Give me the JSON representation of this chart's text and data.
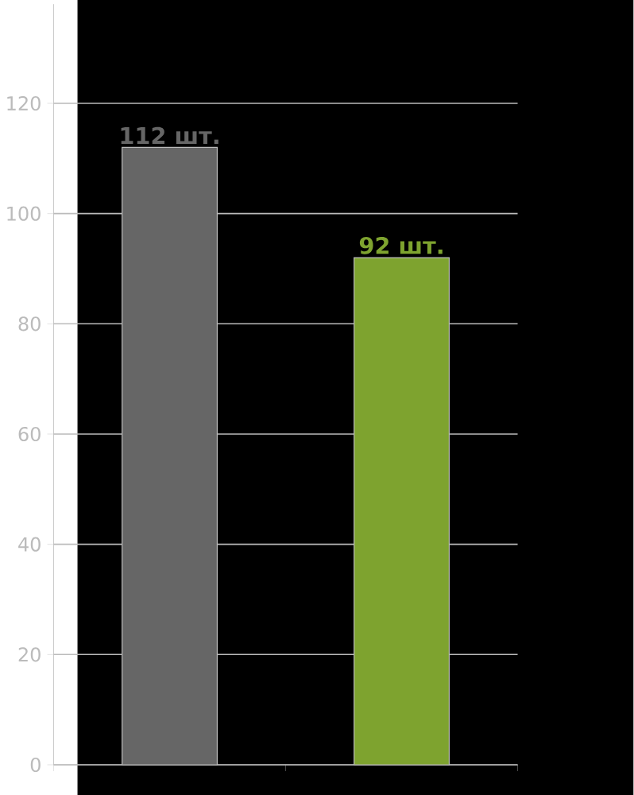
{
  "chart_data": {
    "type": "bar",
    "categories": [
      null,
      null
    ],
    "values": [
      112,
      92
    ],
    "colors": [
      "#666666",
      "#7ea32f"
    ],
    "value_labels": [
      "112 шт.",
      "92 шт."
    ],
    "ylim": [
      0,
      138
    ],
    "yticks": [
      0,
      20,
      40,
      60,
      80,
      100,
      120
    ],
    "grid": "y"
  }
}
